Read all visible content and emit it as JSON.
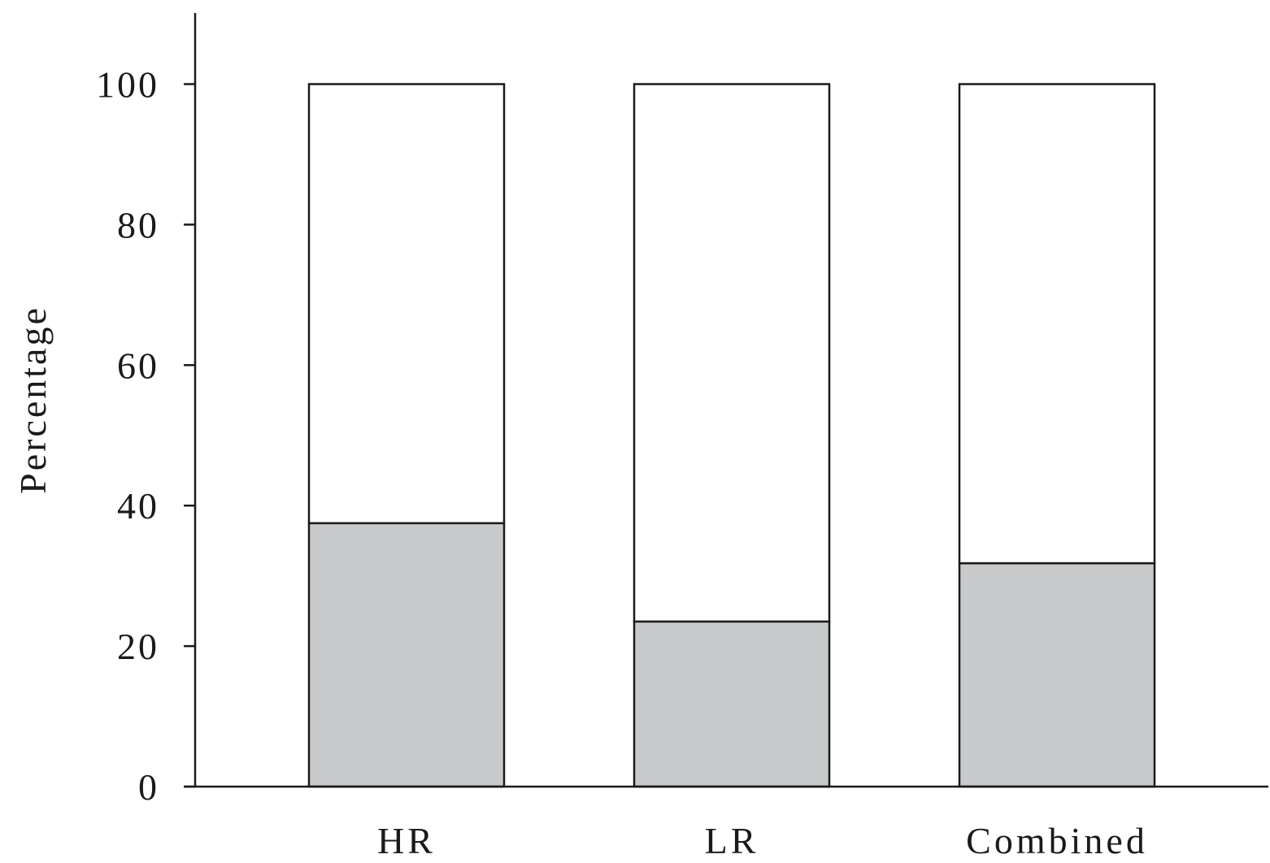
{
  "chart_data": {
    "type": "bar",
    "stacked": true,
    "categories": [
      "HR",
      "LR",
      "Combined"
    ],
    "series": [
      {
        "values": [
          37.5,
          23.5,
          31.8
        ],
        "color": "#c8c9cb"
      },
      {
        "values": [
          62.5,
          76.5,
          68.2
        ],
        "color": "#ffffff"
      }
    ],
    "ylabel": "Percentage",
    "ylim": [
      0,
      110
    ],
    "yticks": [
      0,
      20,
      40,
      60,
      80,
      100
    ],
    "grid": false,
    "legend": "none"
  }
}
